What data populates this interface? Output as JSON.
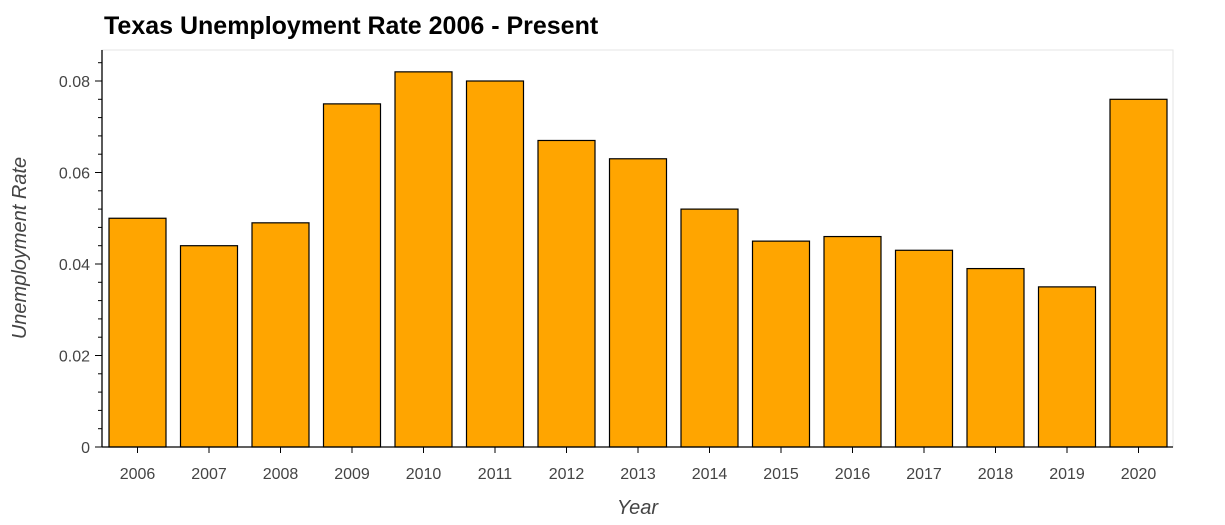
{
  "chart_data": {
    "type": "bar",
    "title": "Texas Unemployment Rate 2006 - Present",
    "xlabel": "Year",
    "ylabel": "Unemployment Rate",
    "categories": [
      "2006",
      "2007",
      "2008",
      "2009",
      "2010",
      "2011",
      "2012",
      "2013",
      "2014",
      "2015",
      "2016",
      "2017",
      "2018",
      "2019",
      "2020"
    ],
    "values": [
      0.05,
      0.044,
      0.049,
      0.075,
      0.082,
      0.08,
      0.067,
      0.063,
      0.052,
      0.045,
      0.046,
      0.043,
      0.039,
      0.035,
      0.076
    ],
    "yticks": [
      0,
      0.02,
      0.04,
      0.06,
      0.08
    ],
    "ytick_labels": [
      "0",
      "0.02",
      "0.04",
      "0.06",
      "0.08"
    ],
    "ylim": [
      0,
      0.08
    ],
    "grid": false,
    "legend": "none",
    "colors": {
      "bar_fill": "#FFA500",
      "bar_stroke": "#000000",
      "frame": "#e5e5e5",
      "axis": "#000000",
      "text": "#444444"
    }
  }
}
